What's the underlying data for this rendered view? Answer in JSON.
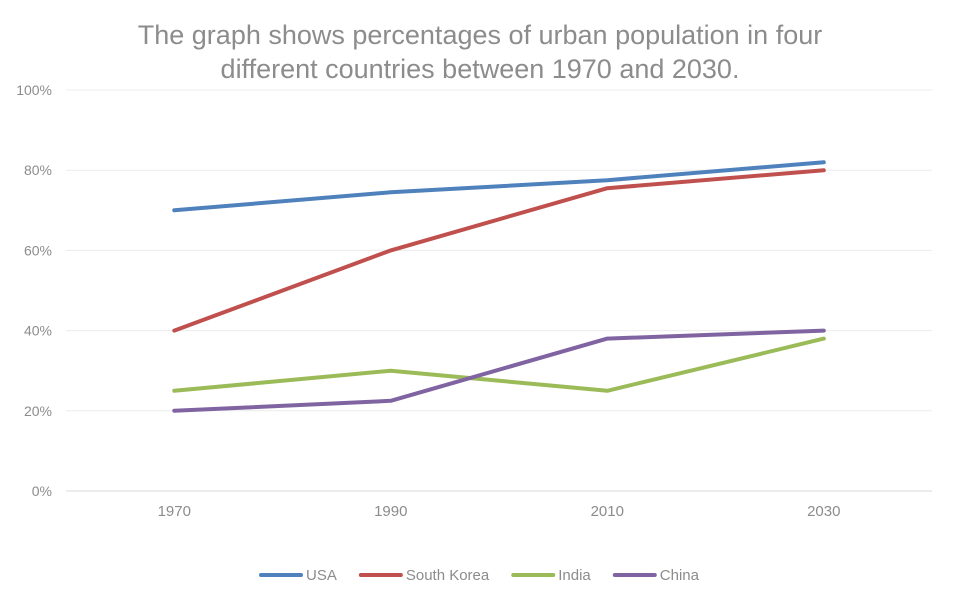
{
  "chart_data": {
    "type": "line",
    "title_lines": [
      "The graph shows percentages of urban population in four",
      "different countries between 1970 and 2030."
    ],
    "categories": [
      "1970",
      "1990",
      "2010",
      "2030"
    ],
    "y_ticks": [
      "0%",
      "20%",
      "40%",
      "60%",
      "80%",
      "100%"
    ],
    "ylim": [
      0,
      100
    ],
    "y_step": 20,
    "grid": true,
    "legend_position": "bottom",
    "series": [
      {
        "name": "USA",
        "color": "#4f81bd",
        "values": [
          70,
          74.5,
          77.5,
          82
        ]
      },
      {
        "name": "South Korea",
        "color": "#c0504d",
        "values": [
          40,
          60,
          75.5,
          80
        ]
      },
      {
        "name": "India",
        "color": "#9bbb59",
        "values": [
          25,
          30,
          25,
          38
        ]
      },
      {
        "name": "China",
        "color": "#8064a2",
        "values": [
          20,
          22.5,
          38,
          40
        ]
      }
    ]
  }
}
